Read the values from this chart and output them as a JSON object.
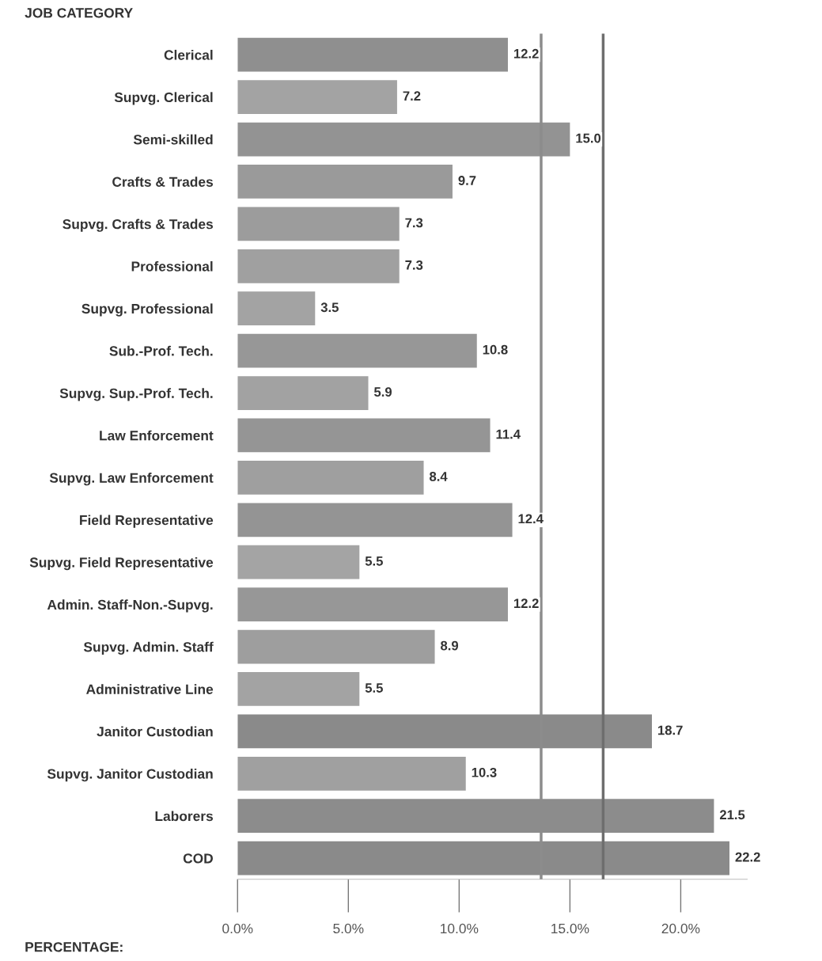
{
  "chart_data": {
    "type": "bar",
    "orientation": "horizontal",
    "xlabel": "PERCENTAGE:",
    "ylabel": "JOB CATEGORY",
    "categories": [
      "Clerical",
      "Supvg. Clerical",
      "Semi-skilled",
      "Crafts & Trades",
      "Supvg. Crafts & Trades",
      "Professional",
      "Supvg. Professional",
      "Sub.-Prof. Tech.",
      "Supvg. Sup.-Prof. Tech.",
      "Law Enforcement",
      "Supvg. Law Enforcement",
      "Field Representative",
      "Supvg. Field Representative",
      "Admin. Staff-Non.-Supvg.",
      "Supvg. Admin. Staff",
      "Administrative Line",
      "Janitor Custodian",
      "Supvg. Janitor Custodian",
      "Laborers",
      "COD"
    ],
    "values": [
      12.2,
      7.2,
      15.0,
      9.7,
      7.3,
      7.3,
      3.5,
      10.8,
      5.9,
      11.4,
      8.4,
      12.4,
      5.5,
      12.2,
      8.9,
      5.5,
      18.7,
      10.3,
      21.5,
      22.2
    ],
    "colors": [
      "#8f8f8f",
      "#a3a3a3",
      "#939393",
      "#9a9a9a",
      "#9c9c9c",
      "#a0a0a0",
      "#a3a3a3",
      "#979797",
      "#a2a2a2",
      "#959595",
      "#9f9f9f",
      "#949494",
      "#a4a4a4",
      "#979797",
      "#9e9e9e",
      "#a3a3a3",
      "#8a8a8a",
      "#a0a0a0",
      "#8c8c8c",
      "#8a8a8a"
    ],
    "xlim": [
      0,
      23
    ],
    "value_labels": [
      "12.2",
      "7.2",
      "15.0",
      "9.7",
      "7.3",
      "7.3",
      "3.5",
      "10.8",
      "5.9",
      "11.4",
      "8.4",
      "12.4",
      "5.5",
      "12.2",
      "8.9",
      "5.5",
      "18.7",
      "10.3",
      "21.5",
      "22.2"
    ],
    "xticks": [
      {
        "value": 0,
        "label": "0.0%"
      },
      {
        "value": 5,
        "label": "5.0%"
      },
      {
        "value": 10,
        "label": "10.0%"
      },
      {
        "value": 15,
        "label": "15.0%"
      },
      {
        "value": 20,
        "label": "20.0%"
      }
    ],
    "ref_lines": [
      {
        "axis": "x",
        "value": 13.7,
        "color": "#8c8c8c"
      },
      {
        "axis": "x",
        "value": 16.5,
        "color": "#6e6e6e"
      }
    ],
    "grid": false,
    "legend": false
  }
}
